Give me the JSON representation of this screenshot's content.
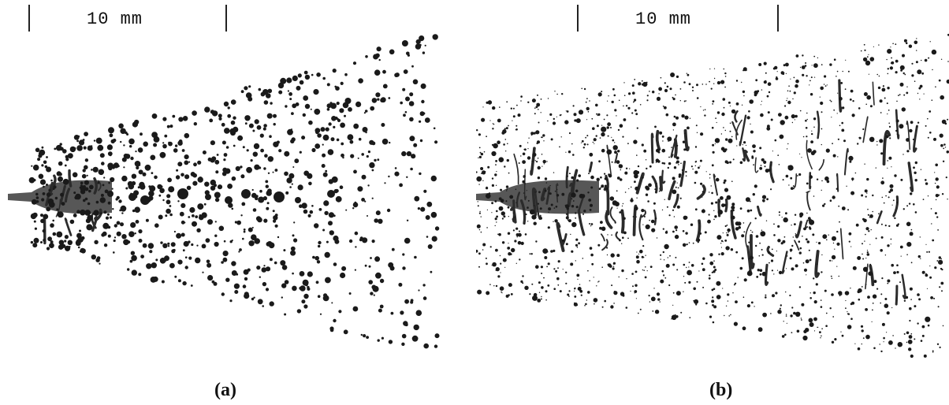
{
  "figure": {
    "panels": [
      {
        "id": "a",
        "scale_label": "10 mm",
        "caption": "(a)",
        "seed": 7,
        "droplet_count": 900,
        "ligament_count": 14,
        "core_length": 0.22
      },
      {
        "id": "b",
        "scale_label": "10 mm",
        "caption": "(b)",
        "seed": 19,
        "droplet_count": 1700,
        "ligament_count": 95,
        "core_length": 0.26
      }
    ],
    "colors": {
      "droplet": "#1a1a1a",
      "ligament": "#2b2b2b",
      "jet_core": "#3a3a3a"
    }
  }
}
